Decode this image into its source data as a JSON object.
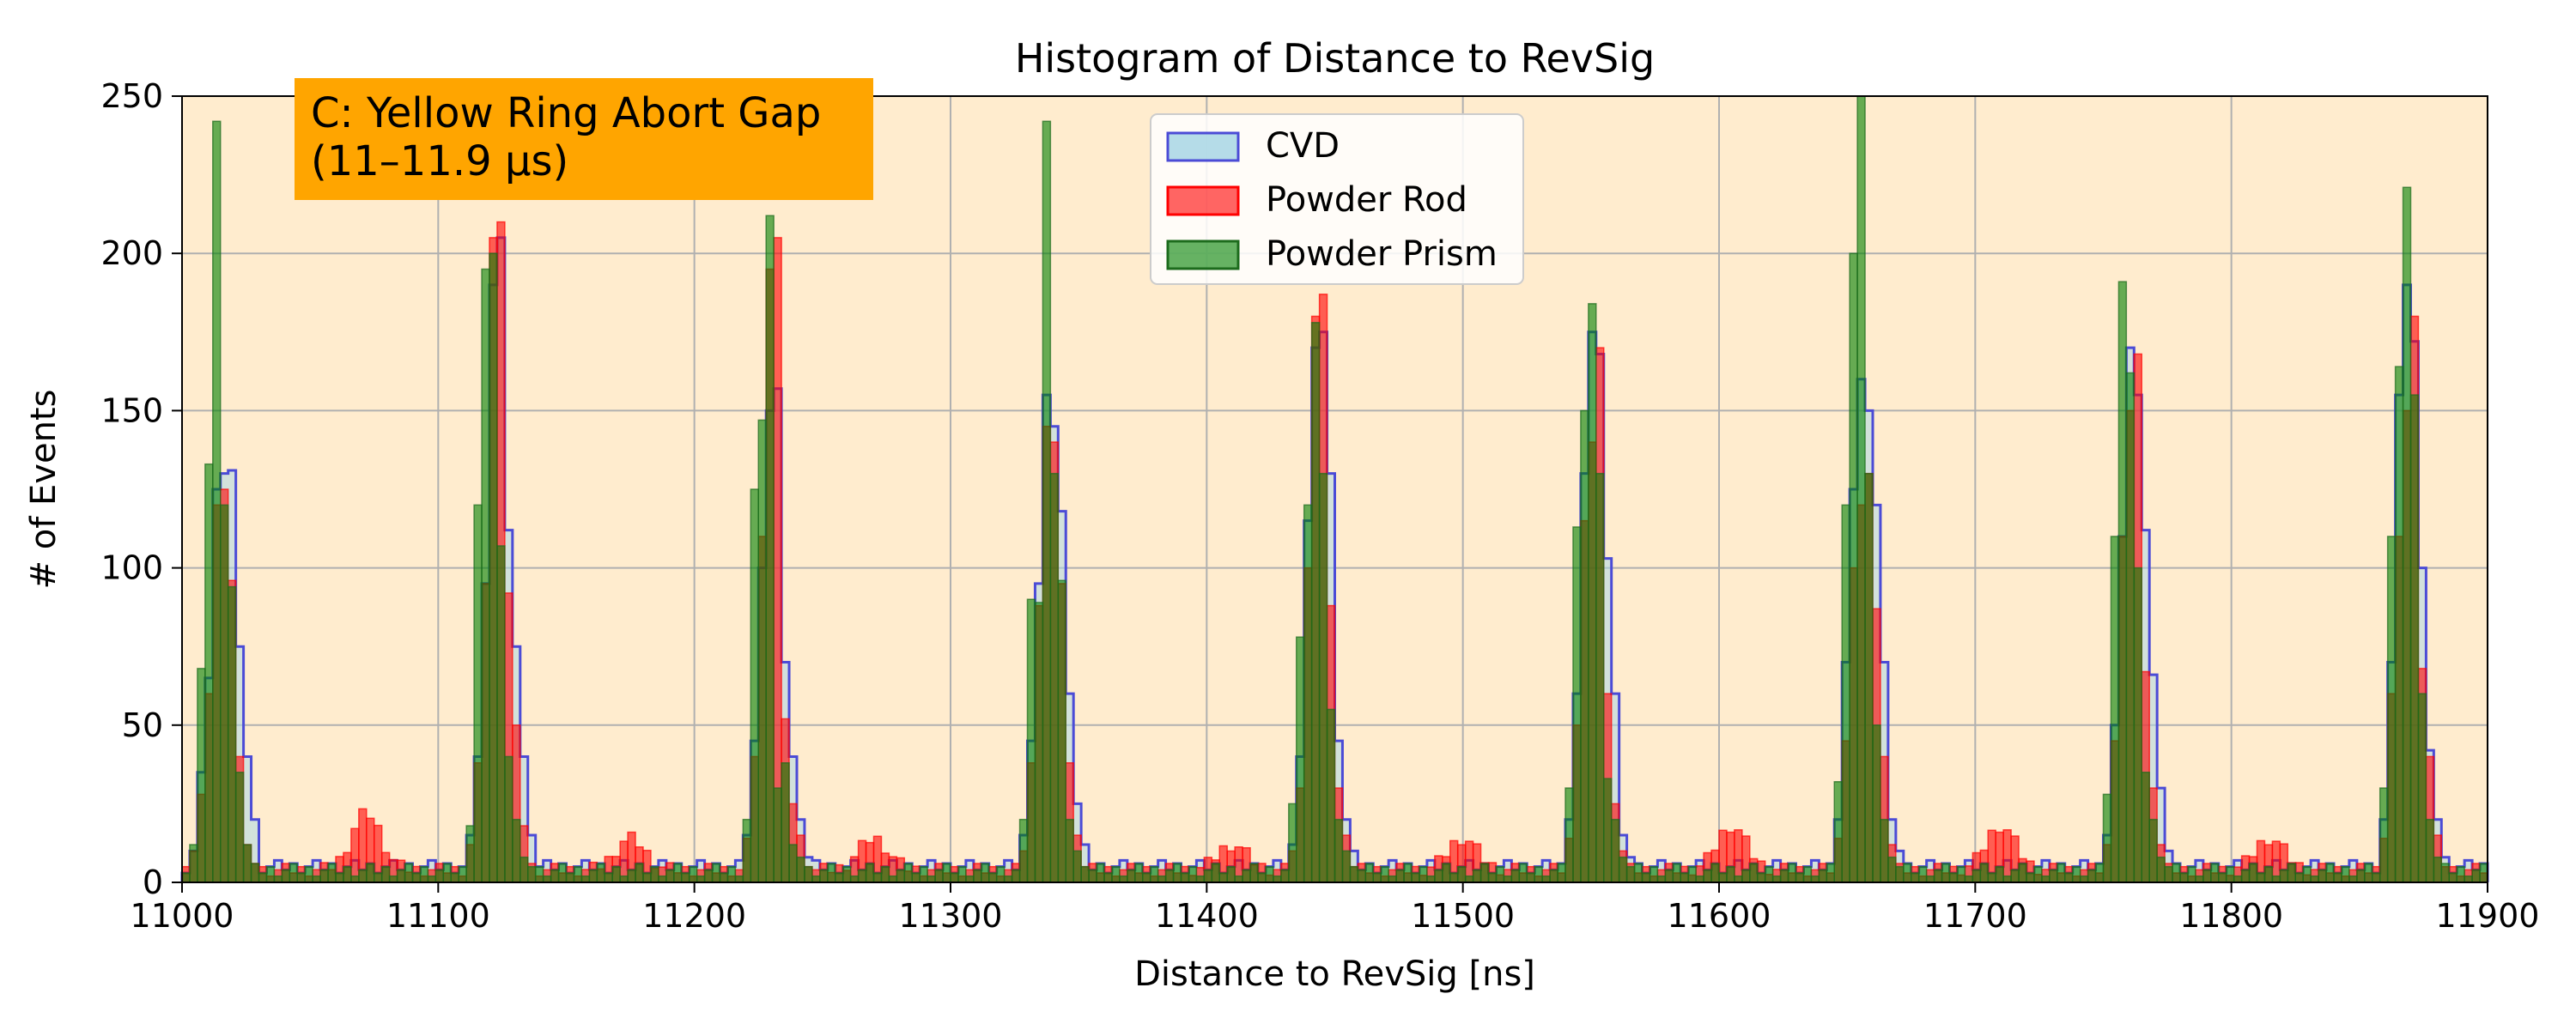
{
  "chart_data": {
    "type": "bar",
    "title": "Histogram of Distance to RevSig",
    "xlabel": "Distance to RevSig [ns]",
    "ylabel": "# of Events",
    "xlim": [
      11000,
      11900
    ],
    "ylim": [
      0,
      250
    ],
    "xticks": [
      "11000",
      "11100",
      "11200",
      "11300",
      "11400",
      "11500",
      "11600",
      "11700",
      "11800",
      "11900"
    ],
    "yticks": [
      "0",
      "50",
      "100",
      "150",
      "200",
      "250"
    ],
    "grid": true,
    "legend_position": "top-center",
    "bin_width_ns": 3,
    "annotation": {
      "line1": "C: Yellow Ring Abort Gap",
      "line2": "(11–11.9 µs)",
      "color": "#ffa500"
    },
    "plot_background": "#ffecce",
    "peak_centers_ns": [
      11018,
      11125,
      11233,
      11340,
      11447,
      11553,
      11658,
      11765,
      11872
    ],
    "series": [
      {
        "name": "CVD",
        "style": "step",
        "face": "#add8e6",
        "edge": "#4b4bd6",
        "baseline": 5,
        "peaks": [
          {
            "center": 11018,
            "values": [
              10,
              35,
              65,
              125,
              130,
              131,
              75,
              40,
              20
            ]
          },
          {
            "center": 11125,
            "values": [
              15,
              40,
              95,
              190,
              205,
              112,
              75,
              40,
              15
            ]
          },
          {
            "center": 11233,
            "values": [
              15,
              45,
              100,
              150,
              157,
              70,
              40,
              20,
              8
            ]
          },
          {
            "center": 11340,
            "values": [
              15,
              45,
              95,
              155,
              145,
              118,
              60,
              25,
              12
            ]
          },
          {
            "center": 11447,
            "values": [
              12,
              40,
              115,
              170,
              175,
              130,
              45,
              20,
              10
            ]
          },
          {
            "center": 11553,
            "values": [
              20,
              60,
              130,
              175,
              168,
              103,
              60,
              15,
              8
            ]
          },
          {
            "center": 11658,
            "values": [
              20,
              70,
              125,
              160,
              150,
              120,
              70,
              20,
              10
            ]
          },
          {
            "center": 11765,
            "values": [
              15,
              50,
              110,
              170,
              155,
              112,
              66,
              30,
              10
            ]
          },
          {
            "center": 11872,
            "values": [
              20,
              70,
              155,
              190,
              172,
              100,
              42,
              20,
              8
            ]
          }
        ]
      },
      {
        "name": "Powder Rod",
        "style": "filled",
        "face": "#ff0000",
        "edge": "#ff0000",
        "opacity": 0.6,
        "baseline": 4,
        "peaks": [
          {
            "center": 11018,
            "values": [
              10,
              28,
              60,
              120,
              125,
              96,
              40,
              12,
              6
            ]
          },
          {
            "center": 11125,
            "values": [
              12,
              38,
              95,
              205,
              210,
              92,
              50,
              18,
              6
            ]
          },
          {
            "center": 11233,
            "values": [
              14,
              40,
              110,
              195,
              205,
              52,
              25,
              15,
              5
            ]
          },
          {
            "center": 11340,
            "values": [
              10,
              38,
              88,
              145,
              140,
              95,
              38,
              15,
              5
            ]
          },
          {
            "center": 11447,
            "values": [
              10,
              30,
              100,
              180,
              187,
              88,
              30,
              15,
              5
            ]
          },
          {
            "center": 11553,
            "values": [
              14,
              50,
              115,
              140,
              170,
              60,
              25,
              10,
              5
            ]
          },
          {
            "center": 11658,
            "values": [
              14,
              45,
              100,
              120,
              130,
              87,
              40,
              12,
              6
            ]
          },
          {
            "center": 11765,
            "values": [
              12,
              45,
              110,
              150,
              168,
              67,
              30,
              12,
              5
            ]
          },
          {
            "center": 11872,
            "values": [
              14,
              60,
              110,
              150,
              180,
              68,
              40,
              15,
              5
            ]
          }
        ],
        "bumps": [
          {
            "center": 11072,
            "height": 18
          },
          {
            "center": 11175,
            "height": 10
          },
          {
            "center": 11270,
            "height": 10
          },
          {
            "center": 11410,
            "height": 8
          },
          {
            "center": 11500,
            "height": 10
          },
          {
            "center": 11605,
            "height": 14
          },
          {
            "center": 11710,
            "height": 14
          },
          {
            "center": 11815,
            "height": 10
          }
        ]
      },
      {
        "name": "Powder Prism",
        "style": "filled",
        "face": "#008000",
        "edge": "#1c6b1c",
        "opacity": 0.6,
        "baseline": 4,
        "peaks": [
          {
            "center": 11018,
            "values": [
              12,
              68,
              133,
              242,
              120,
              94,
              35,
              12,
              5
            ]
          },
          {
            "center": 11125,
            "values": [
              18,
              120,
              195,
              200,
              107,
              40,
              20,
              8,
              5
            ]
          },
          {
            "center": 11233,
            "values": [
              20,
              125,
              147,
              212,
              30,
              38,
              12,
              8,
              5
            ]
          },
          {
            "center": 11340,
            "values": [
              20,
              90,
              89,
              242,
              130,
              96,
              20,
              10,
              5
            ]
          },
          {
            "center": 11447,
            "values": [
              25,
              78,
              120,
              178,
              130,
              55,
              20,
              10,
              5
            ]
          },
          {
            "center": 11553,
            "values": [
              30,
              113,
              150,
              184,
              130,
              33,
              20,
              8,
              5
            ]
          },
          {
            "center": 11658,
            "values": [
              32,
              120,
              200,
              250,
              130,
              50,
              20,
              8,
              5
            ]
          },
          {
            "center": 11765,
            "values": [
              28,
              110,
              191,
              162,
              100,
              35,
              20,
              8,
              5
            ]
          },
          {
            "center": 11872,
            "values": [
              30,
              110,
              164,
              221,
              155,
              60,
              20,
              8,
              5
            ]
          }
        ]
      }
    ]
  }
}
